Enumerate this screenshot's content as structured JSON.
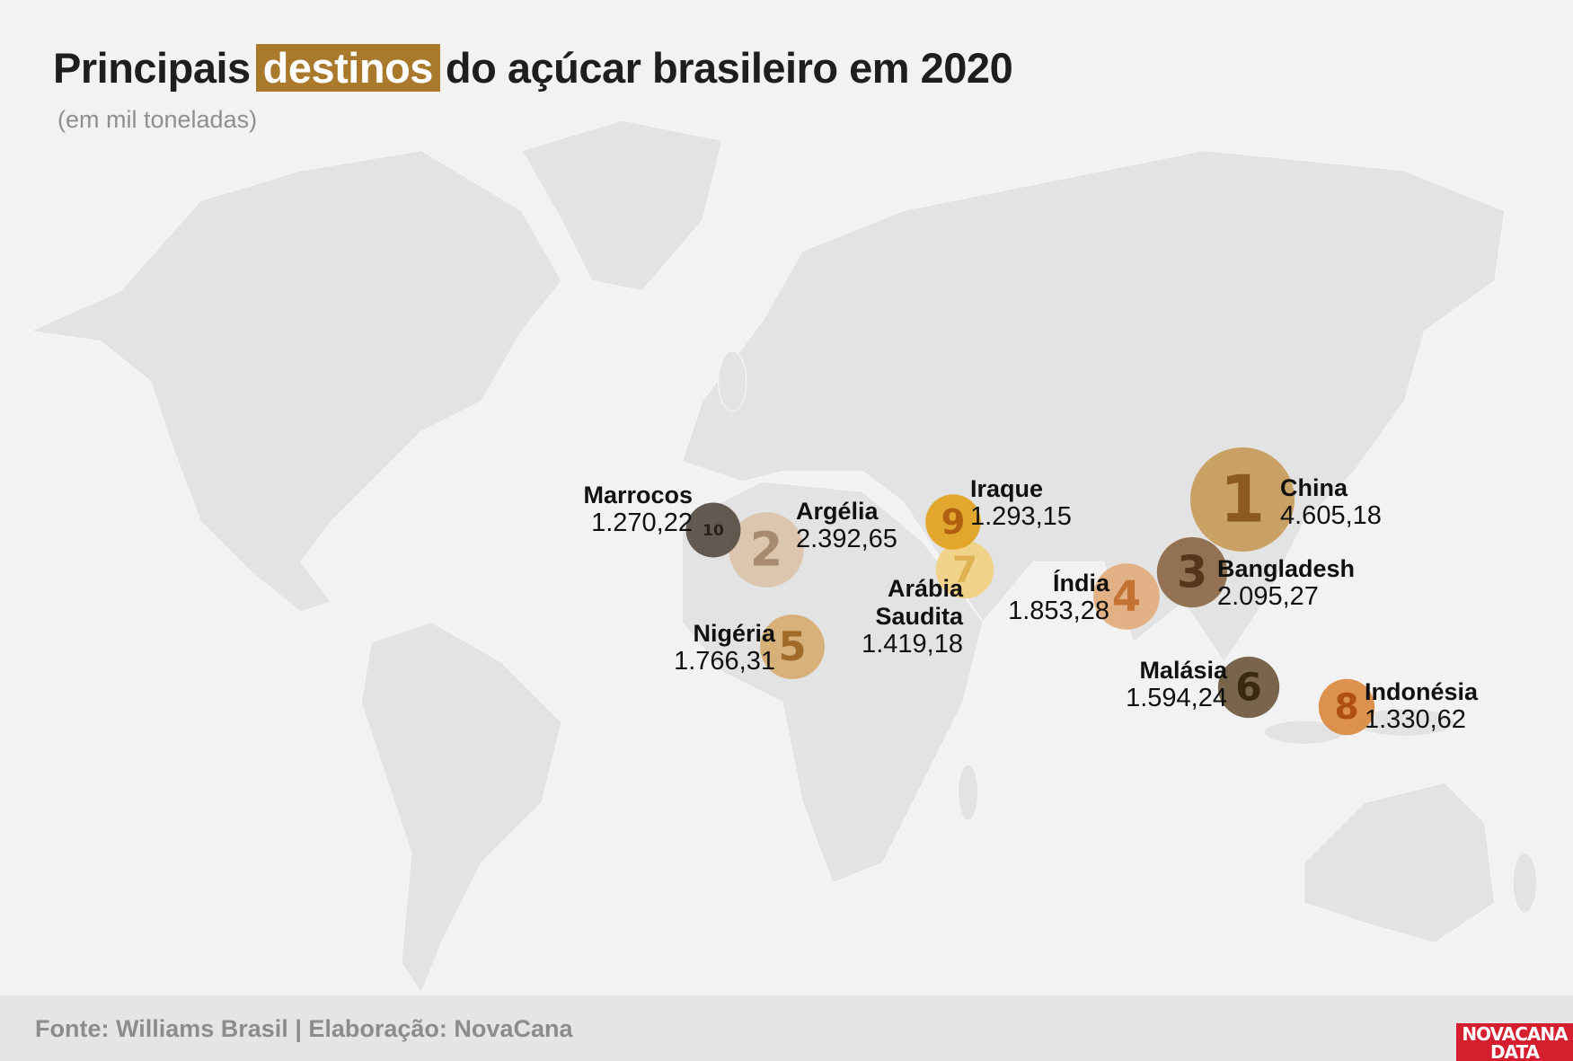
{
  "header": {
    "title_before": "Principais",
    "title_highlight": "destinos",
    "title_after": "do açúcar brasileiro em 2020",
    "subtitle": "(em mil toneladas)"
  },
  "map": {
    "points": [
      {
        "rank": 1,
        "name": "China",
        "value": 4605.18,
        "value_label": "4.605,18",
        "color": "#c79d5e",
        "number_color": "#8a5a1e"
      },
      {
        "rank": 2,
        "name": "Argélia",
        "value": 2392.65,
        "value_label": "2.392,65",
        "color": "#dcc4ad",
        "number_color": "#a88a70"
      },
      {
        "rank": 3,
        "name": "Bangladesh",
        "value": 2095.27,
        "value_label": "2.095,27",
        "color": "#8d6c4a",
        "number_color": "#56361a"
      },
      {
        "rank": 4,
        "name": "Índia",
        "value": 1853.28,
        "value_label": "1.853,28",
        "color": "#e2ad80",
        "number_color": "#c27232"
      },
      {
        "rank": 5,
        "name": "Nigéria",
        "value": 1766.31,
        "value_label": "1.766,31",
        "color": "#d6ad74",
        "number_color": "#a06a28"
      },
      {
        "rank": 6,
        "name": "Malásia",
        "value": 1594.24,
        "value_label": "1.594,24",
        "color": "#715d42",
        "number_color": "#3a2810"
      },
      {
        "rank": 7,
        "name": "Arábia Saudita",
        "value": 1419.18,
        "value_label": "1.419,18",
        "color": "#f0d184",
        "number_color": "#dfb152"
      },
      {
        "rank": 8,
        "name": "Indonésia",
        "value": 1330.62,
        "value_label": "1.330,62",
        "color": "#da8b42",
        "number_color": "#b05010"
      },
      {
        "rank": 9,
        "name": "Iraque",
        "value": 1293.15,
        "value_label": "1.293,15",
        "color": "#e2a324",
        "number_color": "#b06010"
      },
      {
        "rank": 10,
        "name": "Marrocos",
        "value": 1270.22,
        "value_label": "1.270,22",
        "color": "#5b5149",
        "number_color": "#2a2018"
      }
    ]
  },
  "footer": {
    "source": "Fonte: Williams Brasil | Elaboração: NovaCana",
    "logo_top": "NOVACANA",
    "logo_bottom": "DATA"
  }
}
